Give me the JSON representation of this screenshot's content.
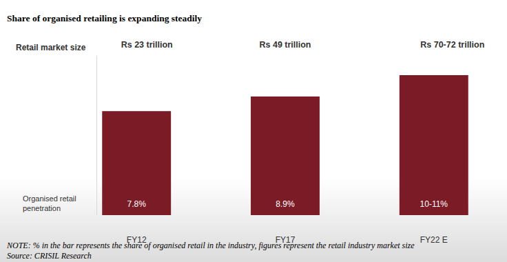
{
  "chart_data": {
    "type": "bar",
    "title": "Share of organised retailing is expanding steadily",
    "categories": [
      "FY12",
      "FY17",
      "FY22 E"
    ],
    "values": [
      7.8,
      8.9,
      10.5
    ],
    "value_labels": [
      "7.8%",
      "8.9%",
      "10-11%"
    ],
    "color": "#7a1b25",
    "ylim": [
      0,
      12
    ],
    "yticks": [
      0
    ],
    "grid": false,
    "data_labels": true,
    "tick_labels": "x",
    "ylabel": "Organised retail penetration",
    "market_size": {
      "title": "Retail market size",
      "labels": [
        "Rs 23 trillion",
        "Rs 49 trillion",
        "Rs 70-72 trillion"
      ]
    },
    "note": "NOTE: % in the bar represents the share of organised retail in the industry, figures represent the retail industry market size",
    "source": "Source: CRISIL Research"
  }
}
